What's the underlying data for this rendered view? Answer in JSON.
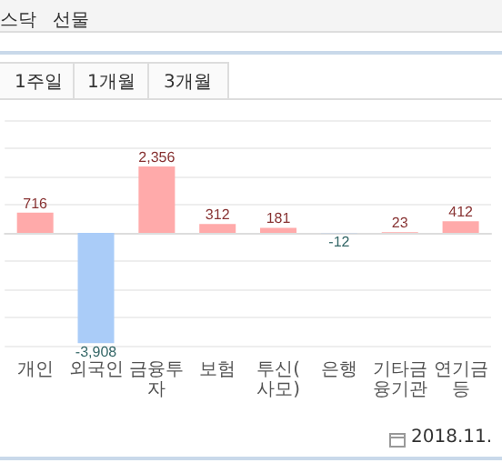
{
  "chart_data": {
    "type": "bar",
    "categories": [
      "개인",
      "외국인",
      "금융투자",
      "보험",
      "투신(사모)",
      "은행",
      "기타금융기관",
      "연기금등"
    ],
    "values": [
      716,
      -3908,
      2356,
      312,
      181,
      -12,
      23,
      412
    ],
    "colors": [
      "#ffaaaa",
      "#aaccf8",
      "#ffaaaa",
      "#ffaaaa",
      "#ffaaaa",
      "#aaccf8",
      "#ffaaaa",
      "#ffaaaa"
    ],
    "value_labels": [
      "716",
      "-3,908",
      "2,356",
      "312",
      "181",
      "-12",
      "23",
      "412"
    ],
    "ylim": [
      -4000,
      4000
    ],
    "yticks": [
      {
        "value": -4000,
        "label": null
      },
      {
        "value": -3000,
        "label": null
      },
      {
        "value": -2000,
        "label": null
      },
      {
        "value": -1000,
        "label": null
      },
      {
        "value": 0,
        "label": null
      },
      {
        "value": 1000,
        "label": null
      },
      {
        "value": 2000,
        "label": null
      },
      {
        "value": 3000,
        "label": null
      },
      {
        "value": 4000,
        "label": null
      }
    ],
    "grid": "y",
    "tick_labels": "x",
    "annotations": [
      "스닥",
      "선물",
      "1주일",
      "1개월",
      "3개월",
      "2018.11."
    ]
  }
}
